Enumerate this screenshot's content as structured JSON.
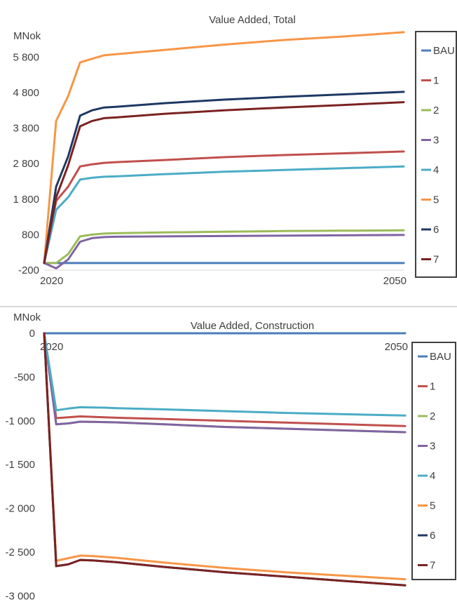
{
  "colors": {
    "BAU": "#4a7ebb",
    "1": "#c0504d",
    "2": "#9bbb59",
    "3": "#8064a2",
    "4": "#4bacc6",
    "5": "#f79646",
    "6": "#1f3864",
    "7": "#7b2222"
  },
  "chart_data": [
    {
      "type": "line",
      "title": "Value Added, Total",
      "ylabel": "MNok",
      "xlabel": "",
      "xlim": [
        2020,
        2050
      ],
      "ylim": [
        -200,
        6300
      ],
      "y_ticks": [
        -200,
        800,
        1800,
        2800,
        3800,
        4800,
        5800
      ],
      "y_tick_labels": [
        "-200",
        "800",
        "1 800",
        "2 800",
        "3 800",
        "4 800",
        "5 800"
      ],
      "x_ticks": [
        2020,
        2050
      ],
      "x_tick_labels": [
        "2020",
        "2050"
      ],
      "grid": false,
      "legend": "right",
      "x": [
        2020,
        2021,
        2022,
        2023,
        2024,
        2025,
        2026,
        2030,
        2035,
        2040,
        2045,
        2050
      ],
      "series": [
        {
          "name": "BAU",
          "values": [
            0,
            0,
            0,
            0,
            0,
            0,
            0,
            0,
            0,
            0,
            0,
            0
          ]
        },
        {
          "name": "1",
          "values": [
            0,
            1750,
            2150,
            2720,
            2780,
            2820,
            2840,
            2900,
            2980,
            3040,
            3090,
            3140
          ]
        },
        {
          "name": "2",
          "values": [
            0,
            0,
            250,
            750,
            800,
            830,
            840,
            860,
            880,
            900,
            910,
            920
          ]
        },
        {
          "name": "3",
          "values": [
            0,
            -150,
            100,
            600,
            700,
            730,
            740,
            750,
            760,
            770,
            780,
            790
          ]
        },
        {
          "name": "4",
          "values": [
            0,
            1500,
            1850,
            2350,
            2400,
            2430,
            2440,
            2500,
            2570,
            2620,
            2670,
            2720
          ]
        },
        {
          "name": "5",
          "values": [
            0,
            4000,
            4700,
            5650,
            5750,
            5850,
            5880,
            6000,
            6150,
            6280,
            6380,
            6500
          ]
        },
        {
          "name": "6",
          "values": [
            0,
            2150,
            3000,
            4150,
            4300,
            4380,
            4400,
            4500,
            4600,
            4680,
            4750,
            4820
          ]
        },
        {
          "name": "7",
          "values": [
            0,
            1850,
            2750,
            3850,
            4000,
            4080,
            4100,
            4200,
            4300,
            4380,
            4450,
            4530
          ]
        }
      ]
    },
    {
      "type": "line",
      "title": "Value Added, Construction",
      "ylabel": "MNok",
      "xlabel": "",
      "xlim": [
        2020,
        2050
      ],
      "ylim": [
        -3150,
        0
      ],
      "y_ticks": [
        0,
        -500,
        -1000,
        -1500,
        -2000,
        -2500,
        -3000
      ],
      "y_tick_labels": [
        "0",
        "-500",
        "-1 000",
        "-1 500",
        "-2 000",
        "-2 500",
        "-3 000"
      ],
      "x_ticks": [
        2020,
        2050
      ],
      "x_tick_labels": [
        "2020",
        "2050"
      ],
      "x_axis_position": "top",
      "grid": false,
      "legend": "right",
      "x": [
        2020,
        2021,
        2022,
        2023,
        2024,
        2025,
        2026,
        2030,
        2035,
        2040,
        2045,
        2050
      ],
      "series": [
        {
          "name": "BAU",
          "values": [
            0,
            0,
            0,
            0,
            0,
            0,
            0,
            0,
            0,
            0,
            0,
            0
          ]
        },
        {
          "name": "1",
          "values": [
            0,
            -970,
            -960,
            -950,
            -955,
            -960,
            -965,
            -980,
            -1000,
            -1020,
            -1040,
            -1060
          ]
        },
        {
          "name": "2",
          "values": [
            0,
            -1040,
            -1030,
            -1010,
            -1012,
            -1015,
            -1018,
            -1040,
            -1070,
            -1090,
            -1110,
            -1130
          ]
        },
        {
          "name": "3",
          "values": [
            0,
            -1040,
            -1030,
            -1010,
            -1012,
            -1015,
            -1018,
            -1040,
            -1070,
            -1090,
            -1110,
            -1130
          ]
        },
        {
          "name": "4",
          "values": [
            0,
            -880,
            -860,
            -845,
            -848,
            -850,
            -855,
            -870,
            -890,
            -910,
            -925,
            -940
          ]
        },
        {
          "name": "5",
          "values": [
            0,
            -2600,
            -2570,
            -2540,
            -2545,
            -2555,
            -2565,
            -2620,
            -2680,
            -2730,
            -2770,
            -2810
          ]
        },
        {
          "name": "6",
          "values": [
            0,
            -2660,
            -2640,
            -2590,
            -2595,
            -2605,
            -2615,
            -2670,
            -2730,
            -2780,
            -2830,
            -2880
          ]
        },
        {
          "name": "7",
          "values": [
            0,
            -2660,
            -2640,
            -2590,
            -2595,
            -2605,
            -2615,
            -2670,
            -2730,
            -2780,
            -2830,
            -2880
          ]
        }
      ]
    }
  ]
}
